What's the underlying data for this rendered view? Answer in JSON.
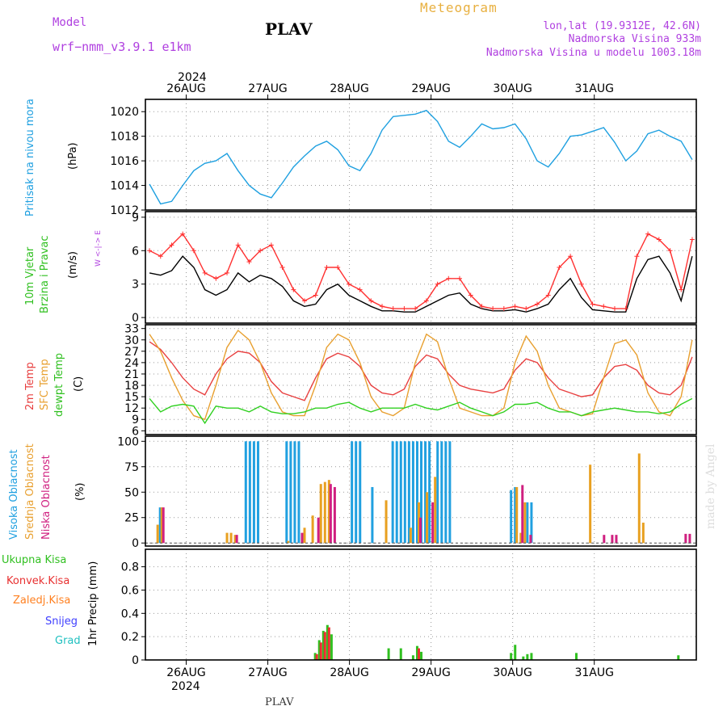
{
  "header": {
    "model_label": "Model",
    "model_name": "wrf−nmm_v3.9.1  e1km",
    "station": "PLAV",
    "title": "Meteogram",
    "lonlat": "lon,lat (19.9312E, 42.6N)",
    "elev": "Nadmorska Visina 933m",
    "elev_model": "Nadmorska Visina u modelu 1003.18m"
  },
  "axis": {
    "year": "2024",
    "day_labels": [
      "26AUG",
      "27AUG",
      "28AUG",
      "29AUG",
      "30AUG",
      "31AUG"
    ]
  },
  "footer": {
    "station": "PLAV",
    "credit": "made by Angel"
  },
  "colors": {
    "pressure": "#1fa0e0",
    "wind_speed": "#000000",
    "wind_gust": "#ff3030",
    "t2m": "#e84040",
    "tsfc": "#e8a030",
    "dewpt": "#30d020",
    "cloud_high": "#20a0e0",
    "cloud_mid": "#e8a020",
    "cloud_low": "#d02080",
    "precip_total": "#30c020",
    "precip_conv": "#e83030",
    "precip_frozen": "#ff8020",
    "snow": "#4040ff",
    "hail": "#20c0c0"
  },
  "chart_data": [
    {
      "type": "line",
      "panel": "pressure",
      "label_lines": [
        "Pritisak na nivou mora"
      ],
      "unit": "(hPa)",
      "ylim": [
        1012,
        1021
      ],
      "yticks": [
        "1012",
        "1014",
        "1016",
        "1018",
        "1020"
      ],
      "grid": true,
      "series": [
        {
          "values": [
            1014.1,
            1012.5,
            1012.7,
            1014.0,
            1015.2,
            1015.8,
            1016.0,
            1016.6,
            1015.2,
            1014.0,
            1013.3,
            1013.0,
            1014.2,
            1015.5,
            1016.4,
            1017.2,
            1017.6,
            1016.9,
            1015.6,
            1015.2,
            1016.6,
            1018.5,
            1019.6,
            1019.7,
            1019.8,
            1020.1,
            1019.2,
            1017.6,
            1017.1,
            1018.0,
            1019.0,
            1018.6,
            1018.7,
            1019.0,
            1017.8,
            1016.0,
            1015.5,
            1016.6,
            1018.0,
            1018.1,
            1018.4,
            1018.7,
            1017.5,
            1016.0,
            1016.8,
            1018.2,
            1018.5,
            1018.0,
            1017.6,
            1016.1
          ]
        }
      ]
    },
    {
      "type": "line",
      "panel": "wind",
      "label_lines": [
        "10m Vjetar",
        "Brzina i Pravac"
      ],
      "unit": "(m/s)",
      "compass": "W <-|-> E",
      "ylim": [
        -0.5,
        9.5
      ],
      "yticks": [
        "0",
        "3",
        "6",
        "9"
      ],
      "grid": true,
      "series": [
        {
          "values": [
            4.0,
            3.8,
            4.2,
            5.5,
            4.5,
            2.5,
            2.0,
            2.5,
            4.0,
            3.2,
            3.8,
            3.5,
            2.8,
            1.5,
            1.0,
            1.2,
            2.5,
            3.0,
            2.0,
            1.5,
            1.0,
            0.6,
            0.6,
            0.5,
            0.5,
            1.0,
            1.5,
            2.0,
            2.2,
            1.2,
            0.8,
            0.6,
            0.6,
            0.7,
            0.5,
            0.8,
            1.2,
            2.5,
            3.5,
            1.8,
            0.7,
            0.6,
            0.5,
            0.5,
            3.5,
            5.2,
            5.5,
            4.0,
            1.5,
            5.5
          ]
        },
        {
          "values": [
            6.0,
            5.5,
            6.5,
            7.5,
            6.0,
            4.0,
            3.5,
            4.0,
            6.5,
            5.0,
            6.0,
            6.5,
            4.5,
            2.5,
            1.5,
            2.0,
            4.5,
            4.5,
            3.0,
            2.5,
            1.5,
            1.0,
            0.8,
            0.8,
            0.8,
            1.5,
            3.0,
            3.5,
            3.5,
            2.0,
            1.0,
            0.8,
            0.8,
            1.0,
            0.8,
            1.2,
            2.0,
            4.5,
            5.5,
            3.0,
            1.2,
            1.0,
            0.8,
            0.8,
            5.5,
            7.5,
            7.0,
            6.0,
            2.5,
            7.0
          ]
        }
      ]
    },
    {
      "type": "line",
      "panel": "temperature",
      "label_lines": [
        "2m Temp",
        "SFC Temp",
        "dewpt Temp"
      ],
      "unit": "(C)",
      "ylim": [
        5,
        34
      ],
      "yticks": [
        "6",
        "9",
        "12",
        "15",
        "18",
        "21",
        "24",
        "27",
        "30",
        "33"
      ],
      "grid": true,
      "series": [
        {
          "name": "2m Temp",
          "values": [
            29.5,
            27.5,
            24.0,
            20.0,
            17.0,
            15.5,
            21.0,
            25.0,
            27.0,
            26.5,
            24.0,
            19.0,
            16.0,
            15.0,
            14.0,
            20.0,
            25.0,
            26.5,
            25.5,
            23.0,
            18.0,
            16.0,
            15.5,
            17.0,
            23.0,
            26.0,
            25.0,
            21.0,
            18.0,
            17.0,
            16.5,
            16.0,
            17.0,
            22.0,
            25.0,
            24.0,
            20.0,
            17.0,
            16.0,
            15.0,
            15.5,
            20.0,
            23.0,
            23.5,
            22.0,
            18.0,
            16.0,
            15.5,
            18.0,
            25.5
          ]
        },
        {
          "name": "SFC Temp",
          "values": [
            31.5,
            27.0,
            20.0,
            14.0,
            10.0,
            9.0,
            18.0,
            28.0,
            32.5,
            30.0,
            24.0,
            16.0,
            11.0,
            10.0,
            10.0,
            18.0,
            28.0,
            31.5,
            30.0,
            24.0,
            15.0,
            11.0,
            10.0,
            12.0,
            24.0,
            31.5,
            29.5,
            20.0,
            12.0,
            11.0,
            10.0,
            10.0,
            12.0,
            24.0,
            31.0,
            27.0,
            18.0,
            12.0,
            11.0,
            10.0,
            10.5,
            20.0,
            29.0,
            30.0,
            26.0,
            16.0,
            11.0,
            10.0,
            15.0,
            30.0
          ]
        },
        {
          "name": "dewpt Temp",
          "values": [
            14.5,
            11.0,
            12.5,
            13.0,
            12.5,
            8.0,
            12.5,
            12.0,
            12.0,
            11.0,
            12.5,
            11.0,
            10.5,
            10.5,
            11.0,
            12.0,
            12.0,
            13.0,
            13.5,
            12.0,
            11.0,
            12.0,
            12.0,
            12.0,
            13.0,
            12.0,
            11.5,
            12.5,
            13.5,
            12.0,
            11.0,
            10.0,
            11.0,
            13.0,
            13.0,
            13.5,
            12.0,
            11.0,
            11.0,
            10.0,
            11.0,
            11.5,
            12.0,
            11.5,
            11.0,
            11.0,
            10.5,
            11.0,
            13.0,
            14.5
          ]
        }
      ]
    },
    {
      "type": "bar",
      "panel": "cloud",
      "label_lines": [
        "Visoka Oblacnost",
        "Srednja Oblacnost",
        "Niska  Oblacnost"
      ],
      "unit": "(%)",
      "ylim": [
        -3,
        105
      ],
      "yticks": [
        "0",
        "25",
        "50",
        "75",
        "100"
      ],
      "grid": true,
      "series": [
        {
          "name": "Visoka Oblacnost",
          "points": [
            [
              0.2,
              35
            ],
            [
              1.25,
              100
            ],
            [
              1.3,
              100
            ],
            [
              1.35,
              100
            ],
            [
              1.4,
              100
            ],
            [
              1.75,
              100
            ],
            [
              1.8,
              100
            ],
            [
              1.85,
              100
            ],
            [
              1.9,
              100
            ],
            [
              2.55,
              100
            ],
            [
              2.6,
              100
            ],
            [
              2.65,
              100
            ],
            [
              2.8,
              55
            ],
            [
              3.05,
              100
            ],
            [
              3.1,
              100
            ],
            [
              3.15,
              100
            ],
            [
              3.2,
              100
            ],
            [
              3.25,
              100
            ],
            [
              3.3,
              100
            ],
            [
              3.35,
              100
            ],
            [
              3.4,
              100
            ],
            [
              3.45,
              100
            ],
            [
              3.5,
              100
            ],
            [
              3.6,
              100
            ],
            [
              3.65,
              100
            ],
            [
              3.7,
              100
            ],
            [
              3.75,
              100
            ],
            [
              4.5,
              52
            ],
            [
              4.55,
              55
            ],
            [
              4.7,
              40
            ],
            [
              4.75,
              40
            ]
          ]
        },
        {
          "name": "Srednja Oblacnost",
          "points": [
            [
              0.15,
              18
            ],
            [
              0.2,
              35
            ],
            [
              1.0,
              10
            ],
            [
              1.05,
              10
            ],
            [
              1.1,
              8
            ],
            [
              1.75,
              2
            ],
            [
              1.95,
              15
            ],
            [
              2.05,
              27
            ],
            [
              2.15,
              58
            ],
            [
              2.2,
              60
            ],
            [
              2.25,
              62
            ],
            [
              2.95,
              42
            ],
            [
              3.25,
              15
            ],
            [
              3.35,
              40
            ],
            [
              3.45,
              50
            ],
            [
              3.55,
              65
            ],
            [
              4.55,
              55
            ],
            [
              4.6,
              10
            ],
            [
              4.65,
              40
            ],
            [
              5.45,
              77
            ],
            [
              6.05,
              88
            ],
            [
              6.1,
              20
            ]
          ]
        },
        {
          "name": "Niska  Oblacnost",
          "points": [
            [
              0.2,
              35
            ],
            [
              1.1,
              8
            ],
            [
              1.9,
              10
            ],
            [
              2.1,
              25
            ],
            [
              2.25,
              58
            ],
            [
              2.3,
              55
            ],
            [
              3.35,
              25
            ],
            [
              3.5,
              40
            ],
            [
              4.6,
              57
            ],
            [
              4.7,
              8
            ],
            [
              5.6,
              8
            ],
            [
              5.7,
              8
            ],
            [
              5.75,
              8
            ],
            [
              6.6,
              9
            ],
            [
              6.65,
              9
            ]
          ]
        }
      ]
    },
    {
      "type": "bar",
      "panel": "precip",
      "label_lines": [
        "Ukupna  Kisa",
        "Konvek.Kisa",
        "Zaledj.Kisa",
        "Snijeg",
        "Grad"
      ],
      "unit": "1hr Precip (mm)",
      "ylim": [
        0,
        0.95
      ],
      "yticks": [
        "0",
        "0.2",
        "0.4",
        "0.6",
        "0.8"
      ],
      "grid": true,
      "series": [
        {
          "name": "Ukupna  Kisa",
          "points": [
            [
              2.1,
              0.06
            ],
            [
              2.15,
              0.17
            ],
            [
              2.2,
              0.25
            ],
            [
              2.25,
              0.3
            ],
            [
              2.3,
              0.22
            ],
            [
              3.0,
              0.1
            ],
            [
              3.15,
              0.1
            ],
            [
              3.3,
              0.04
            ],
            [
              3.35,
              0.12
            ],
            [
              3.4,
              0.07
            ],
            [
              4.5,
              0.06
            ],
            [
              4.55,
              0.13
            ],
            [
              4.65,
              0.03
            ],
            [
              4.7,
              0.05
            ],
            [
              4.75,
              0.06
            ],
            [
              5.3,
              0.06
            ],
            [
              6.55,
              0.04
            ]
          ]
        },
        {
          "name": "Konvek.Kisa",
          "points": [
            [
              2.1,
              0.05
            ],
            [
              2.15,
              0.15
            ],
            [
              2.2,
              0.24
            ],
            [
              2.25,
              0.28
            ],
            [
              3.35,
              0.1
            ]
          ]
        }
      ]
    }
  ]
}
